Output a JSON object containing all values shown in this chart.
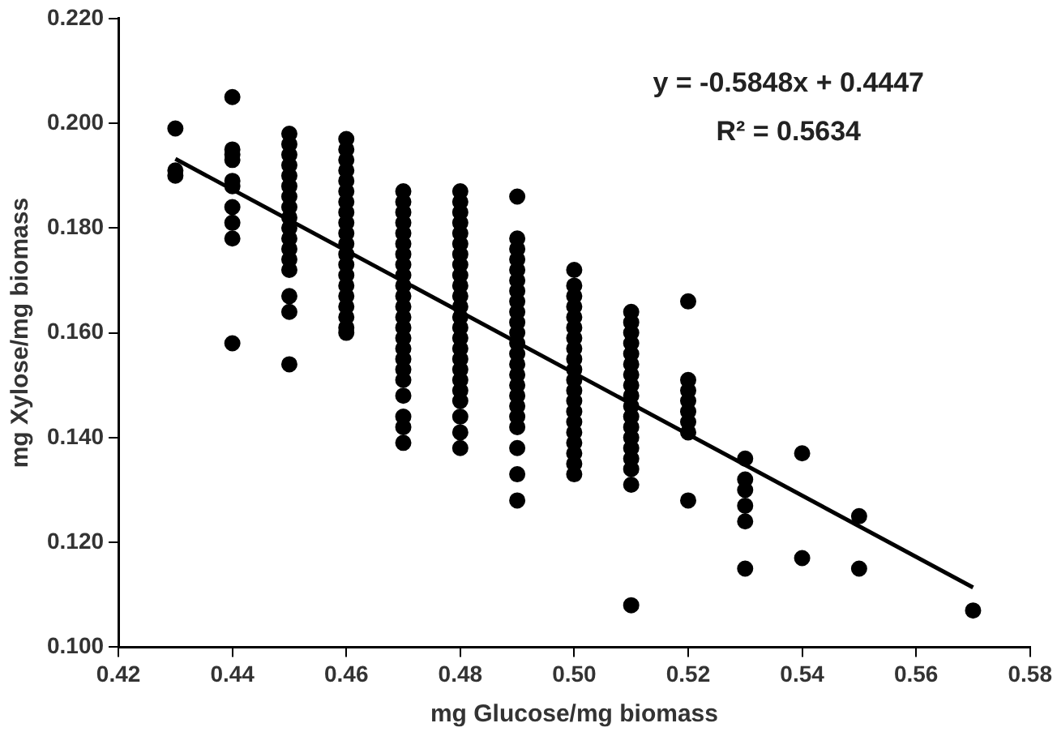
{
  "chart_data": {
    "type": "scatter",
    "xlabel": "mg Glucose/mg biomass",
    "ylabel": "mg Xylose/mg biomass",
    "xlim": [
      0.42,
      0.58
    ],
    "ylim": [
      0.1,
      0.22
    ],
    "xticks": [
      {
        "value": 0.42,
        "label": "0.42"
      },
      {
        "value": 0.44,
        "label": "0.44"
      },
      {
        "value": 0.46,
        "label": "0.46"
      },
      {
        "value": 0.48,
        "label": "0.48"
      },
      {
        "value": 0.5,
        "label": "0.50"
      },
      {
        "value": 0.52,
        "label": "0.52"
      },
      {
        "value": 0.54,
        "label": "0.54"
      },
      {
        "value": 0.56,
        "label": "0.56"
      },
      {
        "value": 0.58,
        "label": "0.58"
      }
    ],
    "yticks": [
      {
        "value": 0.1,
        "label": "0.100"
      },
      {
        "value": 0.12,
        "label": "0.120"
      },
      {
        "value": 0.14,
        "label": "0.140"
      },
      {
        "value": 0.16,
        "label": "0.160"
      },
      {
        "value": 0.18,
        "label": "0.180"
      },
      {
        "value": 0.2,
        "label": "0.200"
      },
      {
        "value": 0.22,
        "label": "0.220"
      }
    ],
    "grid": false,
    "legend": false,
    "marker": "circle",
    "annotations": [
      "y = -0.5848x + 0.4447",
      "R² = 0.5634"
    ],
    "series": [
      {
        "type": "scatter",
        "color": "#000000",
        "x": [
          0.43,
          0.43,
          0.43,
          0.44,
          0.44,
          0.44,
          0.44,
          0.44,
          0.44,
          0.44,
          0.44,
          0.44,
          0.44,
          0.45,
          0.45,
          0.45,
          0.45,
          0.45,
          0.45,
          0.45,
          0.45,
          0.45,
          0.45,
          0.45,
          0.45,
          0.45,
          0.45,
          0.45,
          0.45,
          0.45,
          0.46,
          0.46,
          0.46,
          0.46,
          0.46,
          0.46,
          0.46,
          0.46,
          0.46,
          0.46,
          0.46,
          0.46,
          0.46,
          0.46,
          0.46,
          0.46,
          0.46,
          0.46,
          0.46,
          0.46,
          0.47,
          0.47,
          0.47,
          0.47,
          0.47,
          0.47,
          0.47,
          0.47,
          0.47,
          0.47,
          0.47,
          0.47,
          0.47,
          0.47,
          0.47,
          0.47,
          0.47,
          0.47,
          0.47,
          0.47,
          0.47,
          0.47,
          0.47,
          0.48,
          0.48,
          0.48,
          0.48,
          0.48,
          0.48,
          0.48,
          0.48,
          0.48,
          0.48,
          0.48,
          0.48,
          0.48,
          0.48,
          0.48,
          0.48,
          0.48,
          0.48,
          0.48,
          0.48,
          0.48,
          0.48,
          0.48,
          0.48,
          0.49,
          0.49,
          0.49,
          0.49,
          0.49,
          0.49,
          0.49,
          0.49,
          0.49,
          0.49,
          0.49,
          0.49,
          0.49,
          0.49,
          0.49,
          0.49,
          0.49,
          0.49,
          0.49,
          0.49,
          0.49,
          0.49,
          0.49,
          0.5,
          0.5,
          0.5,
          0.5,
          0.5,
          0.5,
          0.5,
          0.5,
          0.5,
          0.5,
          0.5,
          0.5,
          0.5,
          0.5,
          0.5,
          0.5,
          0.5,
          0.5,
          0.5,
          0.5,
          0.51,
          0.51,
          0.51,
          0.51,
          0.51,
          0.51,
          0.51,
          0.51,
          0.51,
          0.51,
          0.51,
          0.51,
          0.51,
          0.51,
          0.51,
          0.51,
          0.51,
          0.51,
          0.52,
          0.52,
          0.52,
          0.52,
          0.52,
          0.52,
          0.52,
          0.52,
          0.53,
          0.53,
          0.53,
          0.53,
          0.53,
          0.53,
          0.54,
          0.54,
          0.55,
          0.55,
          0.57
        ],
        "values": [
          0.199,
          0.191,
          0.19,
          0.205,
          0.195,
          0.194,
          0.193,
          0.189,
          0.188,
          0.184,
          0.181,
          0.178,
          0.158,
          0.198,
          0.196,
          0.194,
          0.192,
          0.19,
          0.188,
          0.186,
          0.184,
          0.182,
          0.18,
          0.178,
          0.176,
          0.174,
          0.172,
          0.167,
          0.164,
          0.154,
          0.197,
          0.195,
          0.193,
          0.191,
          0.189,
          0.187,
          0.185,
          0.183,
          0.181,
          0.179,
          0.177,
          0.175,
          0.173,
          0.171,
          0.169,
          0.167,
          0.165,
          0.163,
          0.161,
          0.16,
          0.187,
          0.185,
          0.183,
          0.181,
          0.179,
          0.177,
          0.175,
          0.173,
          0.171,
          0.169,
          0.167,
          0.165,
          0.163,
          0.161,
          0.159,
          0.157,
          0.155,
          0.153,
          0.151,
          0.148,
          0.144,
          0.142,
          0.139,
          0.187,
          0.185,
          0.183,
          0.181,
          0.179,
          0.177,
          0.175,
          0.173,
          0.171,
          0.169,
          0.167,
          0.165,
          0.163,
          0.161,
          0.159,
          0.157,
          0.155,
          0.153,
          0.151,
          0.149,
          0.147,
          0.144,
          0.141,
          0.138,
          0.186,
          0.178,
          0.176,
          0.174,
          0.172,
          0.17,
          0.168,
          0.166,
          0.164,
          0.162,
          0.16,
          0.158,
          0.156,
          0.154,
          0.152,
          0.15,
          0.148,
          0.146,
          0.144,
          0.142,
          0.138,
          0.133,
          0.128,
          0.172,
          0.169,
          0.167,
          0.165,
          0.163,
          0.161,
          0.159,
          0.157,
          0.155,
          0.153,
          0.151,
          0.149,
          0.147,
          0.145,
          0.143,
          0.141,
          0.139,
          0.137,
          0.135,
          0.133,
          0.164,
          0.162,
          0.16,
          0.158,
          0.156,
          0.154,
          0.152,
          0.15,
          0.148,
          0.146,
          0.144,
          0.142,
          0.14,
          0.138,
          0.136,
          0.134,
          0.131,
          0.108,
          0.166,
          0.151,
          0.149,
          0.147,
          0.145,
          0.143,
          0.141,
          0.128,
          0.136,
          0.132,
          0.13,
          0.127,
          0.124,
          0.115,
          0.137,
          0.117,
          0.125,
          0.115,
          0.107
        ]
      },
      {
        "type": "line",
        "color": "#000000",
        "marker": "none",
        "line_style": "solid",
        "x": [
          0.43,
          0.57
        ],
        "values": [
          0.1932,
          0.1114
        ]
      }
    ]
  }
}
